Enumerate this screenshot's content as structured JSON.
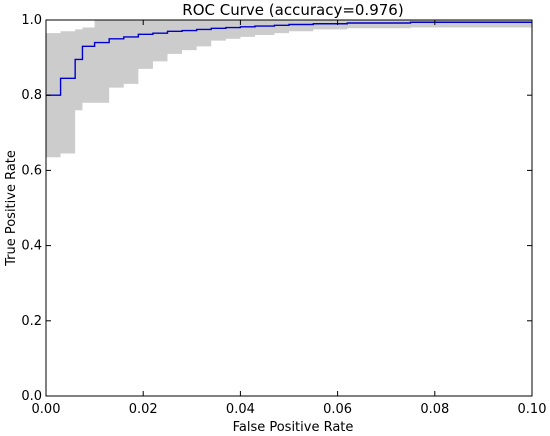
{
  "chart_data": {
    "type": "line",
    "title": "ROC Curve (accuracy=0.976)",
    "xlabel": "False Positive Rate",
    "ylabel": "True Positive Rate",
    "xlim": [
      0.0,
      0.1
    ],
    "ylim": [
      0.0,
      1.0
    ],
    "xticks": [
      "0.00",
      "0.02",
      "0.04",
      "0.06",
      "0.08",
      "0.10"
    ],
    "yticks": [
      "0.0",
      "0.2",
      "0.4",
      "0.6",
      "0.8",
      "1.0"
    ],
    "grid": false,
    "legend": "none",
    "series": [
      {
        "kind": "line",
        "color": "#0000cc",
        "x": [
          0.0,
          0.003,
          0.003,
          0.006,
          0.006,
          0.0075,
          0.0075,
          0.01,
          0.01,
          0.013,
          0.013,
          0.016,
          0.016,
          0.019,
          0.019,
          0.022,
          0.022,
          0.025,
          0.025,
          0.028,
          0.028,
          0.031,
          0.031,
          0.034,
          0.034,
          0.037,
          0.037,
          0.04,
          0.04,
          0.043,
          0.043,
          0.047,
          0.047,
          0.05,
          0.05,
          0.055,
          0.055,
          0.062,
          0.062,
          0.075,
          0.075,
          0.1
        ],
        "y": [
          0.8,
          0.8,
          0.845,
          0.845,
          0.895,
          0.895,
          0.93,
          0.93,
          0.94,
          0.94,
          0.95,
          0.95,
          0.955,
          0.955,
          0.962,
          0.962,
          0.965,
          0.965,
          0.97,
          0.97,
          0.972,
          0.972,
          0.975,
          0.975,
          0.978,
          0.978,
          0.98,
          0.98,
          0.982,
          0.982,
          0.984,
          0.984,
          0.986,
          0.986,
          0.988,
          0.988,
          0.99,
          0.99,
          0.992,
          0.992,
          0.994,
          0.994
        ]
      },
      {
        "kind": "band",
        "color": "#cccccc",
        "x": [
          0.0,
          0.003,
          0.003,
          0.006,
          0.006,
          0.0075,
          0.0075,
          0.01,
          0.01,
          0.013,
          0.013,
          0.016,
          0.016,
          0.019,
          0.019,
          0.022,
          0.022,
          0.025,
          0.025,
          0.028,
          0.028,
          0.031,
          0.031,
          0.034,
          0.034,
          0.037,
          0.037,
          0.04,
          0.04,
          0.043,
          0.043,
          0.047,
          0.047,
          0.05,
          0.05,
          0.055,
          0.055,
          0.062,
          0.062,
          0.075,
          0.075,
          0.1
        ],
        "lower": [
          0.635,
          0.635,
          0.645,
          0.645,
          0.76,
          0.76,
          0.78,
          0.78,
          0.78,
          0.78,
          0.82,
          0.82,
          0.83,
          0.83,
          0.87,
          0.87,
          0.89,
          0.89,
          0.91,
          0.91,
          0.92,
          0.92,
          0.93,
          0.93,
          0.945,
          0.945,
          0.95,
          0.95,
          0.955,
          0.955,
          0.96,
          0.96,
          0.965,
          0.965,
          0.97,
          0.97,
          0.975,
          0.975,
          0.978,
          0.978,
          0.98,
          0.98
        ],
        "upper": [
          0.965,
          0.965,
          0.97,
          0.97,
          0.975,
          0.975,
          0.98,
          0.98,
          1.0,
          1.0,
          1.0,
          1.0,
          1.0,
          1.0,
          1.0,
          1.0,
          1.0,
          1.0,
          1.0,
          1.0,
          1.0,
          1.0,
          1.0,
          1.0,
          1.0,
          1.0,
          1.0,
          1.0,
          1.0,
          1.0,
          1.0,
          1.0,
          1.0,
          1.0,
          1.0,
          1.0,
          1.0,
          1.0,
          1.0,
          1.0,
          1.0,
          1.0
        ]
      }
    ]
  }
}
